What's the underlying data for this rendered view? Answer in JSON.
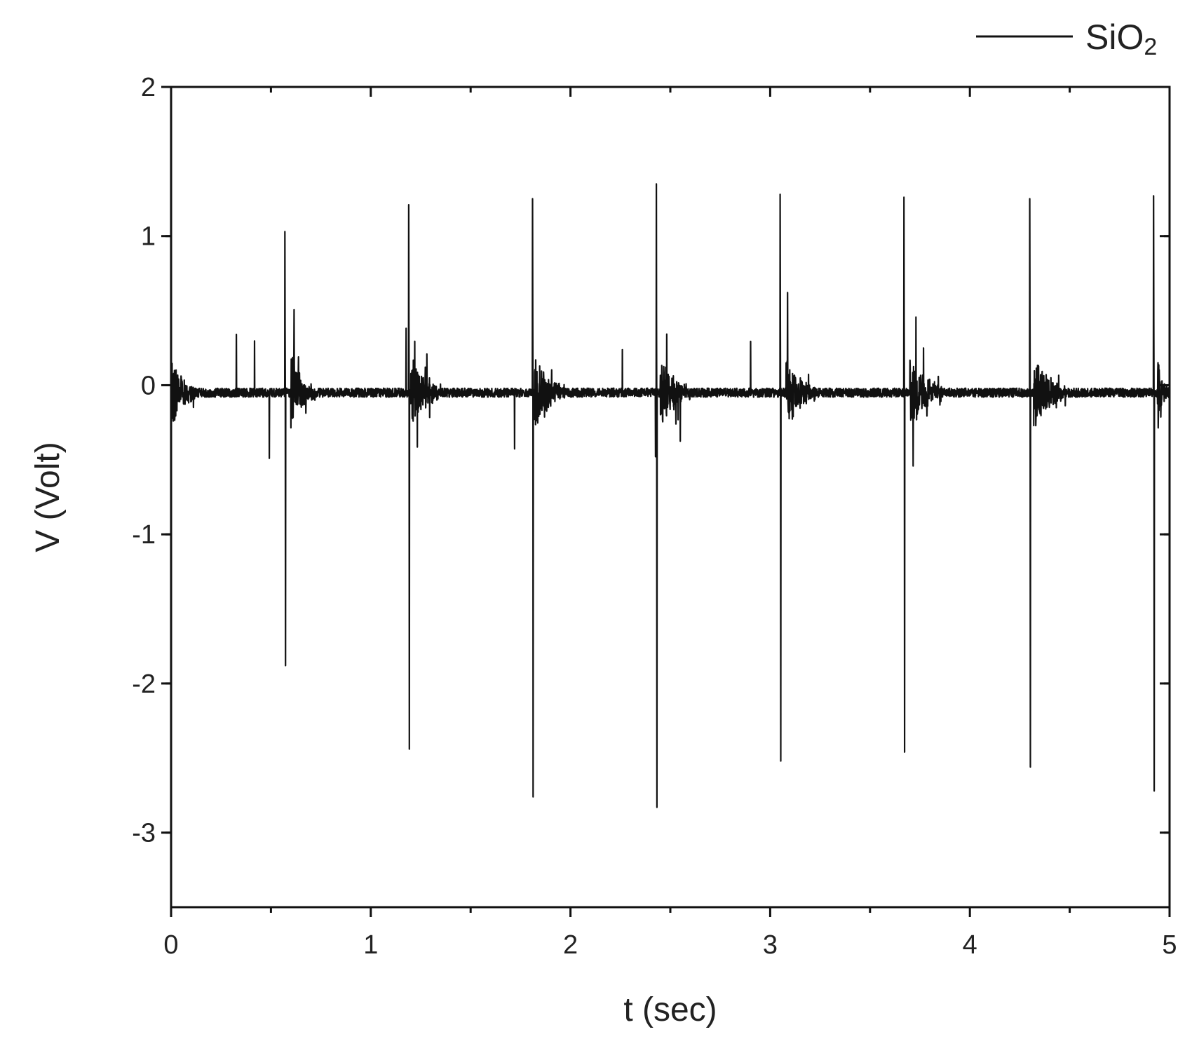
{
  "chart_data": {
    "type": "line",
    "title": "",
    "xlabel": "t (sec)",
    "ylabel": "V (Volt)",
    "xlim": [
      0,
      5
    ],
    "ylim": [
      -3.5,
      2
    ],
    "x_ticks": [
      0,
      1,
      2,
      3,
      4,
      5
    ],
    "x_tick_labels": [
      "0",
      "1",
      "2",
      "3",
      "4",
      "5"
    ],
    "y_ticks": [
      2,
      1,
      0,
      -1,
      -2,
      -3
    ],
    "y_tick_labels": [
      "2",
      "1",
      "0",
      "-1",
      "-2",
      "-3"
    ],
    "grid": false,
    "legend": {
      "position": "top-right",
      "entries": [
        {
          "main": "SiO",
          "sub": "2"
        }
      ]
    },
    "series": [
      {
        "name": "SiO2",
        "color": "#111111",
        "baseline": -0.05,
        "baseline_noise": 0.03,
        "spike_times": [
          0.57,
          1.19,
          1.81,
          2.43,
          3.05,
          3.67,
          4.3,
          4.92
        ],
        "spike_max": [
          1.03,
          1.21,
          1.25,
          1.35,
          1.28,
          1.26,
          1.25,
          1.27
        ],
        "spike_min": [
          -1.88,
          -2.44,
          -2.76,
          -2.83,
          -2.52,
          -2.46,
          -2.56,
          -2.72
        ],
        "bursts": [
          {
            "t": 0.0,
            "duration": 0.12,
            "amp_pos": 0.62,
            "amp_neg": -0.6
          },
          {
            "t": 0.6,
            "duration": 0.12,
            "amp_pos": 0.45,
            "amp_neg": -0.62
          },
          {
            "t": 1.2,
            "duration": 0.15,
            "amp_pos": 0.5,
            "amp_neg": -0.6
          },
          {
            "t": 1.82,
            "duration": 0.15,
            "amp_pos": 0.47,
            "amp_neg": -0.4
          },
          {
            "t": 2.45,
            "duration": 0.15,
            "amp_pos": 0.62,
            "amp_neg": -0.62
          },
          {
            "t": 3.08,
            "duration": 0.15,
            "amp_pos": 0.72,
            "amp_neg": -0.7
          },
          {
            "t": 3.7,
            "duration": 0.16,
            "amp_pos": 0.78,
            "amp_neg": -0.58
          },
          {
            "t": 4.32,
            "duration": 0.16,
            "amp_pos": 0.77,
            "amp_neg": -0.6
          },
          {
            "t": 4.94,
            "duration": 0.06,
            "amp_pos": 0.3,
            "amp_neg": -0.37
          }
        ]
      }
    ]
  }
}
